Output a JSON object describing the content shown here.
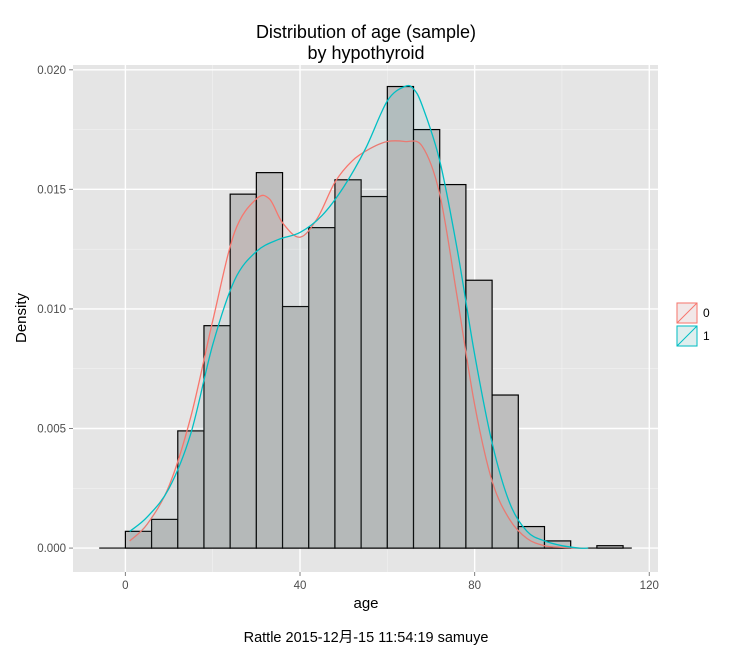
{
  "chart_data": {
    "type": "histogram",
    "title": "Distribution of age (sample)",
    "subtitle": "by hypothyroid",
    "xlabel": "age",
    "ylabel": "Density",
    "xlim": [
      -12,
      122
    ],
    "ylim": [
      -0.001,
      0.0202
    ],
    "x_ticks": [
      0,
      40,
      80,
      120
    ],
    "x_tick_labels": [
      "0",
      "40",
      "80",
      "120"
    ],
    "y_ticks": [
      0,
      0.005,
      0.01,
      0.015,
      0.02
    ],
    "y_tick_labels": [
      "0.000",
      "0.005",
      "0.010",
      "0.015",
      "0.020"
    ],
    "grid": true,
    "legend_position": "right",
    "bins": [
      {
        "x0": 0,
        "x1": 6,
        "density": 0.0007
      },
      {
        "x0": 6,
        "x1": 12,
        "density": 0.0012
      },
      {
        "x0": 12,
        "x1": 18,
        "density": 0.0049
      },
      {
        "x0": 18,
        "x1": 24,
        "density": 0.0093
      },
      {
        "x0": 24,
        "x1": 30,
        "density": 0.0148
      },
      {
        "x0": 30,
        "x1": 36,
        "density": 0.0157
      },
      {
        "x0": 36,
        "x1": 42,
        "density": 0.0101
      },
      {
        "x0": 42,
        "x1": 48,
        "density": 0.0134
      },
      {
        "x0": 48,
        "x1": 54,
        "density": 0.0154
      },
      {
        "x0": 54,
        "x1": 60,
        "density": 0.0147
      },
      {
        "x0": 60,
        "x1": 66,
        "density": 0.0193
      },
      {
        "x0": 66,
        "x1": 72,
        "density": 0.0175
      },
      {
        "x0": 72,
        "x1": 78,
        "density": 0.0152
      },
      {
        "x0": 78,
        "x1": 84,
        "density": 0.0112
      },
      {
        "x0": 84,
        "x1": 90,
        "density": 0.0064
      },
      {
        "x0": 90,
        "x1": 96,
        "density": 0.0009
      },
      {
        "x0": 96,
        "x1": 102,
        "density": 0.0003
      },
      {
        "x0": 102,
        "x1": 108,
        "density": 0.0
      },
      {
        "x0": 108,
        "x1": 114,
        "density": 0.0001
      }
    ],
    "baseline_range": [
      -6,
      116
    ],
    "series": [
      {
        "name": "0",
        "color": "#F8766D",
        "x": [
          1,
          5,
          10,
          15,
          20,
          25,
          30,
          33,
          36,
          40,
          44,
          48,
          52,
          56,
          60,
          64,
          68,
          72,
          76,
          80,
          84,
          88,
          92,
          96,
          100,
          104,
          106
        ],
        "y": [
          0.0003,
          0.001,
          0.0026,
          0.0055,
          0.0095,
          0.0132,
          0.0146,
          0.0146,
          0.0136,
          0.013,
          0.0138,
          0.0153,
          0.0162,
          0.0167,
          0.017,
          0.017,
          0.0168,
          0.0148,
          0.0105,
          0.006,
          0.0028,
          0.0012,
          0.0004,
          0.0001,
          3e-05,
          0.0,
          0.0
        ]
      },
      {
        "name": "1",
        "color": "#00BFC4",
        "x": [
          1,
          5,
          10,
          15,
          20,
          25,
          30,
          35,
          40,
          45,
          50,
          55,
          60,
          64,
          66,
          68,
          72,
          76,
          80,
          84,
          88,
          92,
          96,
          100,
          104,
          106
        ],
        "y": [
          0.0007,
          0.0013,
          0.0025,
          0.0048,
          0.0085,
          0.0112,
          0.0124,
          0.0129,
          0.0132,
          0.0139,
          0.0151,
          0.0167,
          0.0187,
          0.0193,
          0.0192,
          0.0185,
          0.0162,
          0.0125,
          0.0081,
          0.0044,
          0.0019,
          0.0007,
          0.0003,
          0.0001,
          0.0,
          0.0
        ]
      }
    ]
  },
  "caption": "Rattle 2015-12月-15 11:54:19 samuye"
}
